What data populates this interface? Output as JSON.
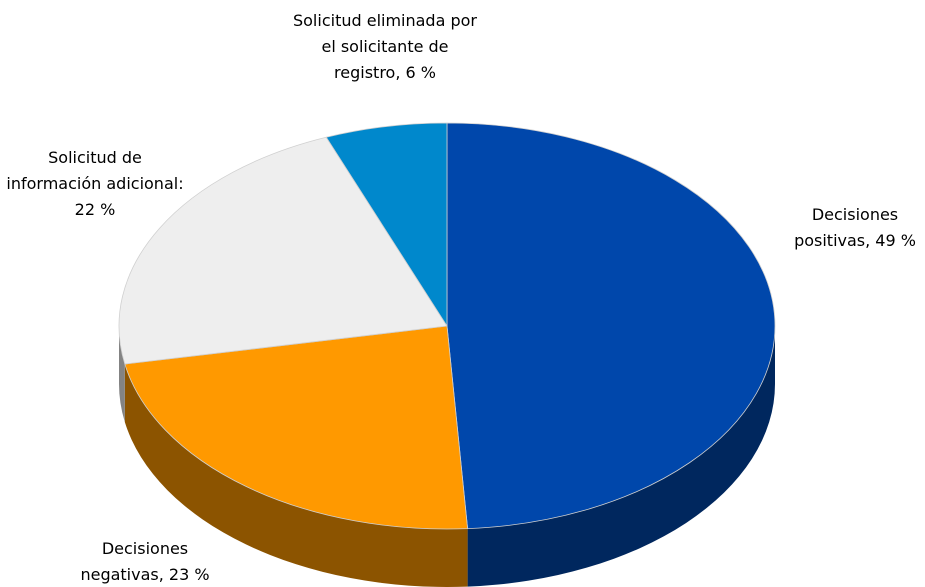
{
  "chart_data": {
    "type": "pie3d",
    "value_labels": [
      "Decisiones positivas, 49 %",
      "Decisiones negativas, 23 %",
      "Solicitud de información adicional: 22 %",
      "Solicitud eliminada por el solicitante de registro, 6 %"
    ],
    "values": [
      49,
      23,
      22,
      6
    ],
    "colors": [
      "#0047ab",
      "#ff9900",
      "#eeeeee",
      "#0088cc"
    ]
  }
}
